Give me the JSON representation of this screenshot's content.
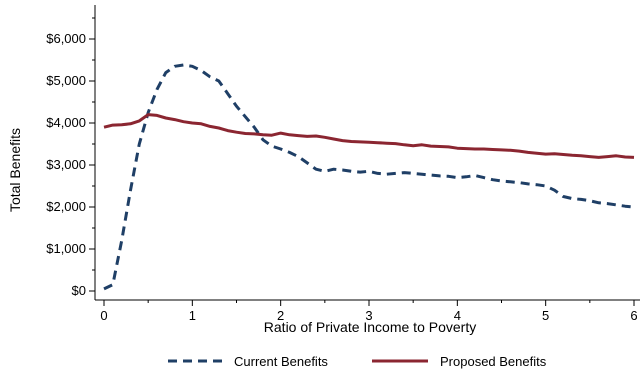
{
  "chart_data": {
    "type": "line",
    "title": "",
    "xlabel": "Ratio of Private Income to Poverty",
    "ylabel": "Total Benefits",
    "xlim": [
      0,
      6
    ],
    "ylim": [
      0,
      6000
    ],
    "xticks": [
      "0",
      "1",
      "2",
      "3",
      "4",
      "5",
      "6"
    ],
    "yticks": [
      "$0",
      "$1,000",
      "$2,000",
      "$3,000",
      "$4,000",
      "$5,000",
      "$6,000"
    ],
    "grid": false,
    "legend_position": "bottom",
    "series": [
      {
        "name": "Current Benefits",
        "color": "#1f3f66",
        "style": "dashed",
        "x": [
          0,
          0.1,
          0.2,
          0.3,
          0.4,
          0.5,
          0.6,
          0.7,
          0.8,
          0.9,
          1.0,
          1.1,
          1.2,
          1.3,
          1.4,
          1.5,
          1.6,
          1.7,
          1.8,
          1.9,
          2.0,
          2.1,
          2.2,
          2.3,
          2.4,
          2.5,
          2.6,
          2.7,
          2.8,
          2.9,
          3.0,
          3.1,
          3.2,
          3.3,
          3.4,
          3.5,
          3.6,
          3.7,
          3.8,
          3.9,
          4.0,
          4.1,
          4.2,
          4.3,
          4.4,
          4.5,
          4.6,
          4.7,
          4.8,
          4.9,
          5.0,
          5.1,
          5.2,
          5.3,
          5.4,
          5.5,
          5.6,
          5.7,
          5.8,
          5.9,
          6.0
        ],
        "y": [
          50,
          150,
          1200,
          2400,
          3500,
          4250,
          4800,
          5200,
          5350,
          5380,
          5350,
          5250,
          5100,
          5000,
          4700,
          4400,
          4150,
          3900,
          3600,
          3450,
          3380,
          3300,
          3200,
          3050,
          2900,
          2850,
          2900,
          2880,
          2850,
          2830,
          2850,
          2800,
          2780,
          2800,
          2820,
          2800,
          2780,
          2760,
          2740,
          2730,
          2700,
          2720,
          2750,
          2700,
          2650,
          2620,
          2600,
          2580,
          2550,
          2530,
          2500,
          2400,
          2250,
          2200,
          2180,
          2150,
          2100,
          2080,
          2050,
          2020,
          2000
        ]
      },
      {
        "name": "Proposed Benefits",
        "color": "#8b2631",
        "style": "solid",
        "x": [
          0,
          0.1,
          0.2,
          0.3,
          0.4,
          0.5,
          0.6,
          0.7,
          0.8,
          0.9,
          1.0,
          1.1,
          1.2,
          1.3,
          1.4,
          1.5,
          1.6,
          1.7,
          1.8,
          1.9,
          2.0,
          2.1,
          2.2,
          2.3,
          2.4,
          2.5,
          2.6,
          2.7,
          2.8,
          2.9,
          3.0,
          3.1,
          3.2,
          3.3,
          3.4,
          3.5,
          3.6,
          3.7,
          3.8,
          3.9,
          4.0,
          4.1,
          4.2,
          4.3,
          4.4,
          4.5,
          4.6,
          4.7,
          4.8,
          4.9,
          5.0,
          5.1,
          5.2,
          5.3,
          5.4,
          5.5,
          5.6,
          5.7,
          5.8,
          5.9,
          6.0
        ],
        "y": [
          3900,
          3950,
          3960,
          3980,
          4050,
          4200,
          4180,
          4120,
          4080,
          4030,
          4000,
          3980,
          3920,
          3880,
          3820,
          3780,
          3750,
          3740,
          3720,
          3710,
          3760,
          3720,
          3700,
          3680,
          3690,
          3660,
          3620,
          3580,
          3560,
          3550,
          3540,
          3530,
          3520,
          3510,
          3480,
          3460,
          3480,
          3450,
          3440,
          3430,
          3400,
          3390,
          3380,
          3380,
          3370,
          3360,
          3350,
          3330,
          3300,
          3280,
          3260,
          3270,
          3250,
          3230,
          3220,
          3200,
          3180,
          3200,
          3220,
          3190,
          3180
        ]
      }
    ]
  }
}
